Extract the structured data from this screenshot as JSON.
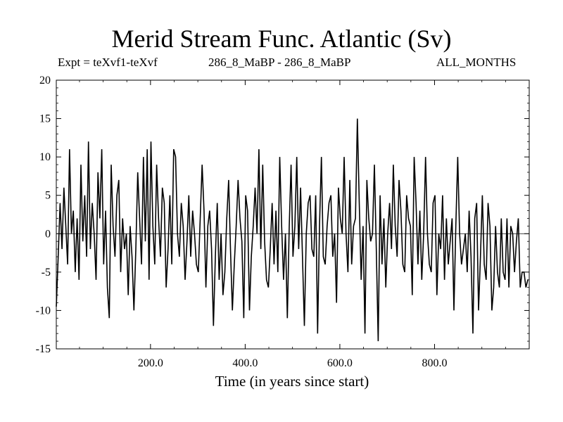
{
  "chart_data": {
    "type": "line",
    "title": "Merid Stream Func. Atlantic (Sv)",
    "header_left": "Expt = teXvf1-teXvf",
    "header_center": "286_8_MaBP - 286_8_MaBP",
    "header_right": "ALL_MONTHS",
    "xlabel": "Time (in years since start)",
    "ylabel": "",
    "xlim": [
      1,
      1000
    ],
    "ylim": [
      -15,
      20
    ],
    "xticks": [
      200,
      400,
      600,
      800
    ],
    "xtick_labels": [
      "200.0",
      "400.0",
      "600.0",
      "800.0"
    ],
    "yticks": [
      -15,
      -10,
      -5,
      0,
      5,
      10,
      15,
      20
    ],
    "ytick_labels": [
      "-15",
      "-10",
      "-5",
      "0",
      "5",
      "10",
      "15",
      "20"
    ],
    "zero_line": true,
    "grid": false,
    "line_color": "#000000",
    "series": [
      {
        "x_start": 1,
        "x_step": 4,
        "values": [
          -9.5,
          -3,
          4,
          -2,
          6,
          1,
          -4,
          11,
          0,
          3,
          -5,
          2,
          -6,
          9,
          -1,
          5,
          -3,
          12,
          -2,
          4,
          0,
          -6,
          8,
          2,
          11,
          -4,
          3,
          -7,
          -11,
          9,
          1,
          -3,
          5,
          7,
          -5,
          2,
          -2,
          0,
          -8,
          1,
          -3,
          -10,
          -2,
          8,
          2,
          -4,
          10,
          -1,
          11,
          -6,
          12,
          1,
          -4,
          9,
          2,
          -3,
          6,
          4,
          -7,
          -2,
          5,
          -4,
          11,
          10,
          0,
          -3,
          4,
          1,
          -6,
          -1,
          5,
          -3,
          3,
          0,
          -4,
          -5,
          2,
          9,
          3,
          -7,
          1,
          3,
          -2,
          -12,
          -3,
          4,
          -6,
          0,
          -8,
          -5,
          2,
          7,
          -2,
          -10,
          -4,
          1,
          7,
          2,
          -1,
          -11,
          5,
          3,
          -10,
          -3,
          1,
          6,
          0,
          11,
          -2,
          9,
          -1,
          -6,
          -7,
          -2,
          4,
          -4,
          3,
          -5,
          10,
          1,
          -6,
          0,
          -11,
          1,
          9,
          -3,
          1,
          10,
          -2,
          6,
          -3,
          -12,
          0,
          4,
          5,
          -2,
          -3,
          5,
          -13,
          1,
          10,
          -3,
          -4,
          1,
          4,
          5,
          -3,
          0,
          -9,
          6,
          2,
          0,
          10,
          0,
          -5,
          7,
          -4,
          1,
          2,
          15,
          4,
          -6,
          1,
          -13,
          7,
          2,
          -1,
          0,
          9,
          -2,
          -14,
          5,
          -4,
          2,
          -7,
          0,
          4,
          -2,
          9,
          1,
          -3,
          7,
          3,
          -4,
          -5,
          5,
          2,
          1,
          -8,
          10,
          4,
          -4,
          3,
          -6,
          0,
          10,
          0,
          -4,
          -5,
          4,
          5,
          -8,
          0,
          -2,
          5,
          -6,
          2,
          -4,
          -1,
          2,
          -10,
          1,
          10,
          0,
          -4,
          -2,
          0,
          -5,
          3,
          -3,
          -13,
          2,
          4,
          -10,
          -3,
          5,
          -4,
          -6,
          4,
          1,
          -10,
          -7,
          1,
          -5,
          -7,
          2,
          -5,
          -6,
          2,
          -7,
          1,
          0,
          -5,
          -1,
          2,
          -7,
          -5,
          -5,
          -7,
          -6
        ]
      }
    ]
  }
}
